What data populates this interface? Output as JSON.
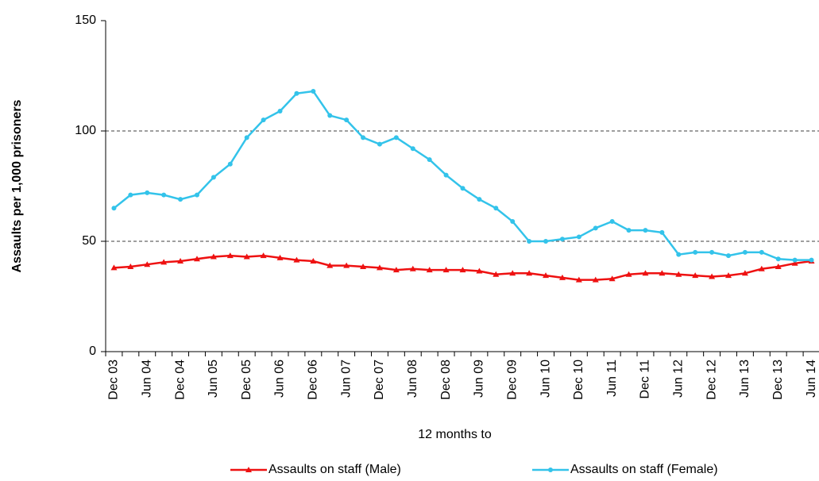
{
  "chart_data": {
    "type": "line",
    "x_label": "12 months to",
    "y_label": "Assaults per 1,000 prisoners",
    "categories": [
      "Dec 03",
      null,
      "Jun 04",
      null,
      "Dec 04",
      null,
      "Jun 05",
      null,
      "Dec 05",
      null,
      "Jun 06",
      null,
      "Dec 06",
      null,
      "Jun 07",
      null,
      "Dec 07",
      null,
      "Jun 08",
      null,
      "Dec 08",
      null,
      "Jun 09",
      null,
      "Dec 09",
      null,
      "Jun 10",
      null,
      "Dec 10",
      null,
      "Jun 11",
      null,
      "Dec 11",
      null,
      "Jun 12",
      null,
      "Dec 12",
      null,
      "Jun 13",
      null,
      "Dec 13",
      null,
      "Jun 14"
    ],
    "series": [
      {
        "name": "Assaults on staff (Male)",
        "color": "#ee1111",
        "marker": "triangle",
        "values": [
          38,
          38.5,
          39.5,
          40.5,
          41,
          42,
          43,
          43.5,
          43,
          43.5,
          42.5,
          41.5,
          41,
          39,
          39,
          38.5,
          38,
          37,
          37.5,
          37,
          37,
          37,
          36.5,
          35,
          35.5,
          35.5,
          34.5,
          33.5,
          32.5,
          32.5,
          33,
          35,
          35.5,
          35.5,
          35,
          34.5,
          34,
          34.5,
          35.5,
          37.5,
          38.5,
          40,
          41
        ]
      },
      {
        "name": "Assaults on staff (Female)",
        "color": "#33c3ea",
        "marker": "circle",
        "values": [
          65,
          71,
          72,
          71,
          69,
          71,
          79,
          85,
          97,
          105,
          109,
          117,
          118,
          107,
          105,
          97,
          94,
          97,
          92,
          87,
          80,
          74,
          69,
          65,
          59,
          50,
          50,
          51,
          52,
          56,
          59,
          55,
          55,
          54,
          44,
          45,
          45,
          43.5,
          45,
          45,
          42,
          41.5,
          41.5
        ]
      }
    ],
    "ylim": [
      0,
      150
    ],
    "yticks": [
      0,
      50,
      100,
      150
    ],
    "grid": true,
    "legend": "bottom"
  }
}
